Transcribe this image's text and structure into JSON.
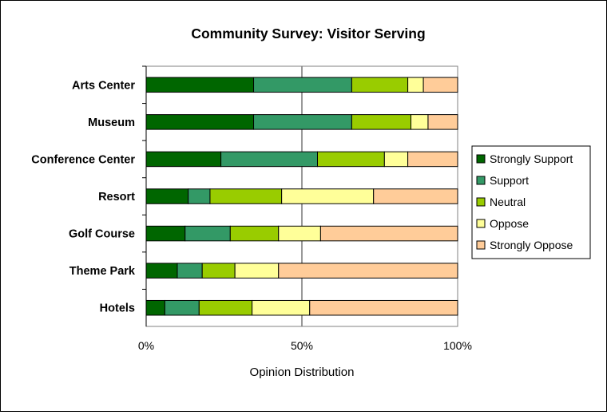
{
  "chart_data": {
    "type": "bar",
    "orientation": "horizontal",
    "stacked": "percent",
    "title": "Community Survey: Visitor Serving",
    "xlabel": "Opinion Distribution",
    "ylabel": "",
    "xlim": [
      0,
      100
    ],
    "x_ticks": [
      "0%",
      "50%",
      "100%"
    ],
    "grid": true,
    "legend_position": "right",
    "categories": [
      "Arts Center",
      "Museum",
      "Conference Center",
      "Resort",
      "Golf Course",
      "Theme Park",
      "Hotels"
    ],
    "series": [
      {
        "name": "Strongly Support",
        "color": "#006600",
        "values": [
          34.5,
          34.5,
          24,
          13.5,
          12.5,
          10,
          6
        ]
      },
      {
        "name": "Support",
        "color": "#339966",
        "values": [
          31.5,
          31.5,
          31,
          7,
          14.5,
          8,
          11
        ]
      },
      {
        "name": "Neutral",
        "color": "#99CC00",
        "values": [
          18,
          19,
          21.5,
          23,
          15.5,
          10.5,
          17
        ]
      },
      {
        "name": "Oppose",
        "color": "#FFFF99",
        "values": [
          5,
          5.5,
          7.5,
          29.5,
          13.5,
          14,
          18.5
        ]
      },
      {
        "name": "Strongly Oppose",
        "color": "#FFCC99",
        "values": [
          11,
          9.5,
          16,
          27,
          44,
          57.5,
          47.5
        ]
      }
    ]
  }
}
